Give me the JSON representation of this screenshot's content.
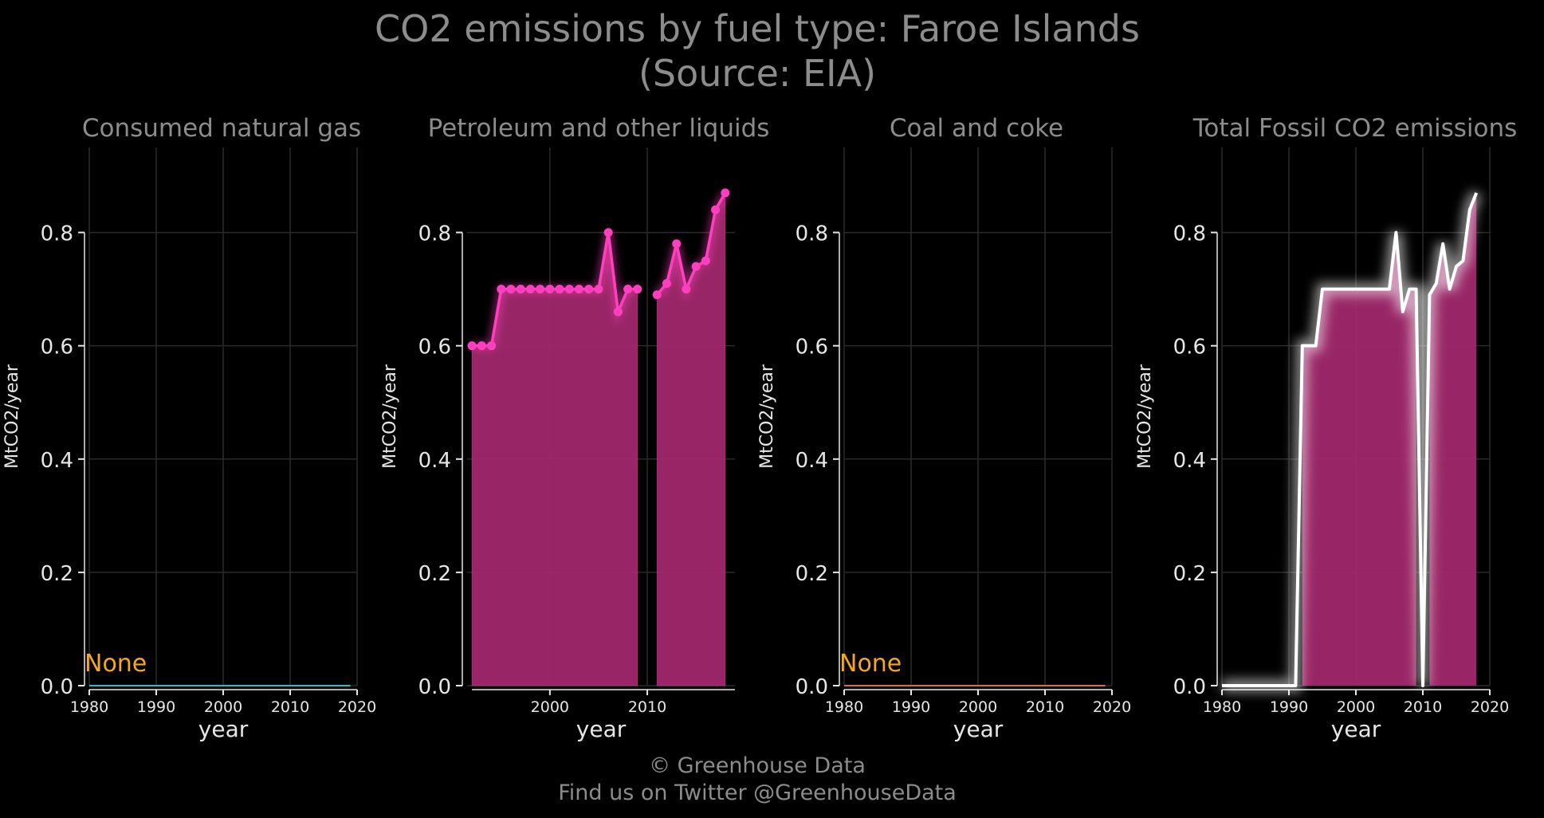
{
  "title_line1": "CO2 emissions by fuel type: Faroe Islands",
  "title_line2": "(Source: EIA)",
  "footer_line1": "© Greenhouse Data",
  "footer_line2": "Find us on Twitter @GreenhouseData",
  "colors": {
    "background": "#000000",
    "grid": "#2a2a2a",
    "text": "#e6e6e6",
    "muted": "#8c8c8c",
    "pink": "#ff3fbf",
    "fill": "#a0286c",
    "none_label": "#f5a623",
    "gas_line": "#19c2c2",
    "coal_line": "#e07020",
    "total_line": "#ffffff"
  },
  "chart_data": [
    {
      "type": "line",
      "title": "Consumed natural gas",
      "xlabel": "year",
      "ylabel": "MtCO2/year",
      "xlim": [
        1980,
        2020
      ],
      "ylim": [
        0,
        0.95
      ],
      "xticks": [
        "1980",
        "1990",
        "2000",
        "2010",
        "2020"
      ],
      "yticks": [
        "0.0",
        "0.2",
        "0.4",
        "0.6",
        "0.8"
      ],
      "annotation": "None",
      "series": [
        {
          "x": [
            1980,
            2019
          ],
          "y": [
            0,
            0
          ]
        }
      ]
    },
    {
      "type": "area",
      "title": "Petroleum and other liquids",
      "xlabel": "year",
      "ylabel": "MtCO2/year",
      "xlim": [
        1991.5,
        2019
      ],
      "ylim": [
        0,
        0.95
      ],
      "xticks": [
        "2000",
        "2010"
      ],
      "yticks": [
        "0.0",
        "0.2",
        "0.4",
        "0.6",
        "0.8"
      ],
      "series": [
        {
          "x": [
            1992,
            1993,
            1994,
            1995,
            1996,
            1997,
            1998,
            1999,
            2000,
            2001,
            2002,
            2003,
            2004,
            2005,
            2006,
            2007,
            2008,
            2009
          ],
          "y": [
            0.6,
            0.6,
            0.6,
            0.7,
            0.7,
            0.7,
            0.7,
            0.7,
            0.7,
            0.7,
            0.7,
            0.7,
            0.7,
            0.7,
            0.8,
            0.66,
            0.7,
            0.7
          ]
        },
        {
          "x": [
            2011,
            2012,
            2013,
            2014,
            2015,
            2016,
            2017,
            2018
          ],
          "y": [
            0.69,
            0.71,
            0.78,
            0.7,
            0.74,
            0.75,
            0.84,
            0.87
          ]
        }
      ]
    },
    {
      "type": "line",
      "title": "Coal and coke",
      "xlabel": "year",
      "ylabel": "MtCO2/year",
      "xlim": [
        1980,
        2020
      ],
      "ylim": [
        0,
        0.95
      ],
      "xticks": [
        "1980",
        "1990",
        "2000",
        "2010",
        "2020"
      ],
      "yticks": [
        "0.0",
        "0.2",
        "0.4",
        "0.6",
        "0.8"
      ],
      "annotation": "None",
      "series": [
        {
          "x": [
            1980,
            2019
          ],
          "y": [
            0,
            0
          ]
        }
      ]
    },
    {
      "type": "line",
      "title": "Total Fossil CO2 emissions",
      "xlabel": "year",
      "ylabel": "MtCO2/year",
      "xlim": [
        1980,
        2020
      ],
      "ylim": [
        0,
        0.95
      ],
      "xticks": [
        "1980",
        "1990",
        "2000",
        "2010",
        "2020"
      ],
      "yticks": [
        "0.0",
        "0.2",
        "0.4",
        "0.6",
        "0.8"
      ],
      "series": [
        {
          "x": [
            1980,
            1981,
            1982,
            1983,
            1984,
            1985,
            1986,
            1987,
            1988,
            1989,
            1990,
            1991,
            1992,
            1993,
            1994,
            1995,
            1996,
            1997,
            1998,
            1999,
            2000,
            2001,
            2002,
            2003,
            2004,
            2005,
            2006,
            2007,
            2008,
            2009,
            2010,
            2011,
            2012,
            2013,
            2014,
            2015,
            2016,
            2017,
            2018
          ],
          "y": [
            0,
            0,
            0,
            0,
            0,
            0,
            0,
            0,
            0,
            0,
            0,
            0,
            0.6,
            0.6,
            0.6,
            0.7,
            0.7,
            0.7,
            0.7,
            0.7,
            0.7,
            0.7,
            0.7,
            0.7,
            0.7,
            0.7,
            0.8,
            0.66,
            0.7,
            0.7,
            0,
            0.69,
            0.71,
            0.78,
            0.7,
            0.74,
            0.75,
            0.84,
            0.87
          ]
        }
      ]
    }
  ]
}
